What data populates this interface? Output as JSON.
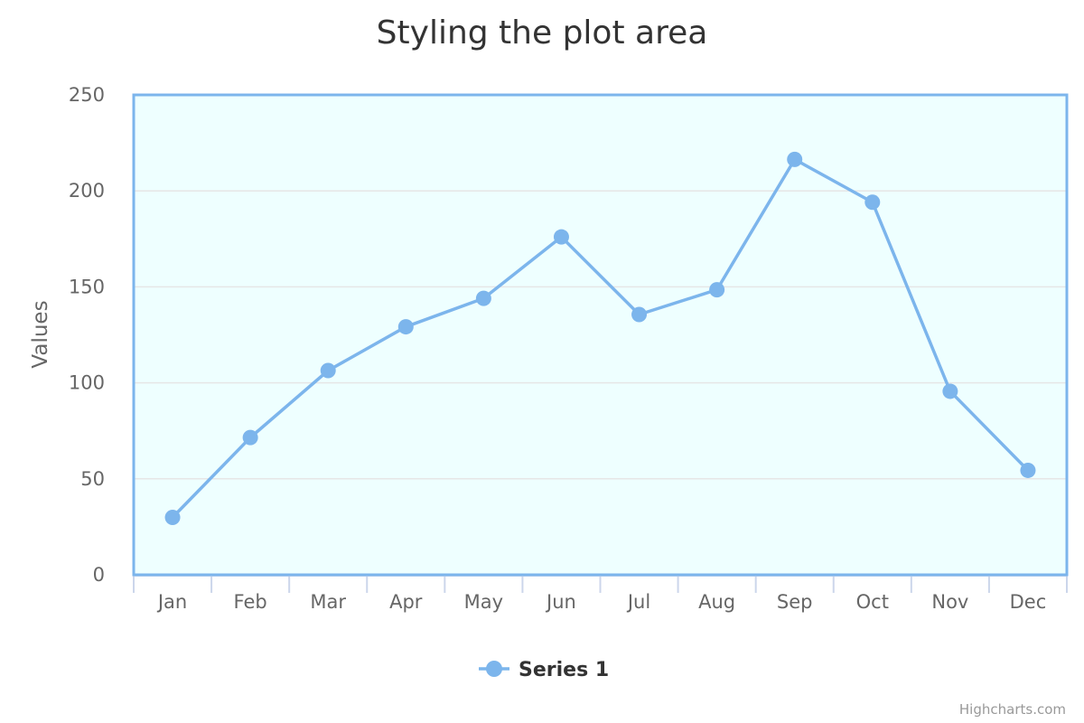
{
  "chart_data": {
    "type": "line",
    "title": "Styling the plot area",
    "ylabel": "Values",
    "xlabel": "",
    "categories": [
      "Jan",
      "Feb",
      "Mar",
      "Apr",
      "May",
      "Jun",
      "Jul",
      "Aug",
      "Sep",
      "Oct",
      "Nov",
      "Dec"
    ],
    "series": [
      {
        "name": "Series 1",
        "values": [
          29.9,
          71.5,
          106.4,
          129.2,
          144.0,
          176.0,
          135.6,
          148.5,
          216.4,
          194.1,
          95.6,
          54.4
        ]
      }
    ],
    "ylim": [
      0,
      250
    ],
    "yticks": [
      0,
      50,
      100,
      150,
      200,
      250
    ],
    "grid": true,
    "legend_position": "bottom-center",
    "colors": {
      "series": "#7cb5ec",
      "plot_background": "#eeffff",
      "plot_border": "#7cb5ec",
      "grid": "#e6e6e6"
    }
  },
  "credits": "Highcharts.com"
}
